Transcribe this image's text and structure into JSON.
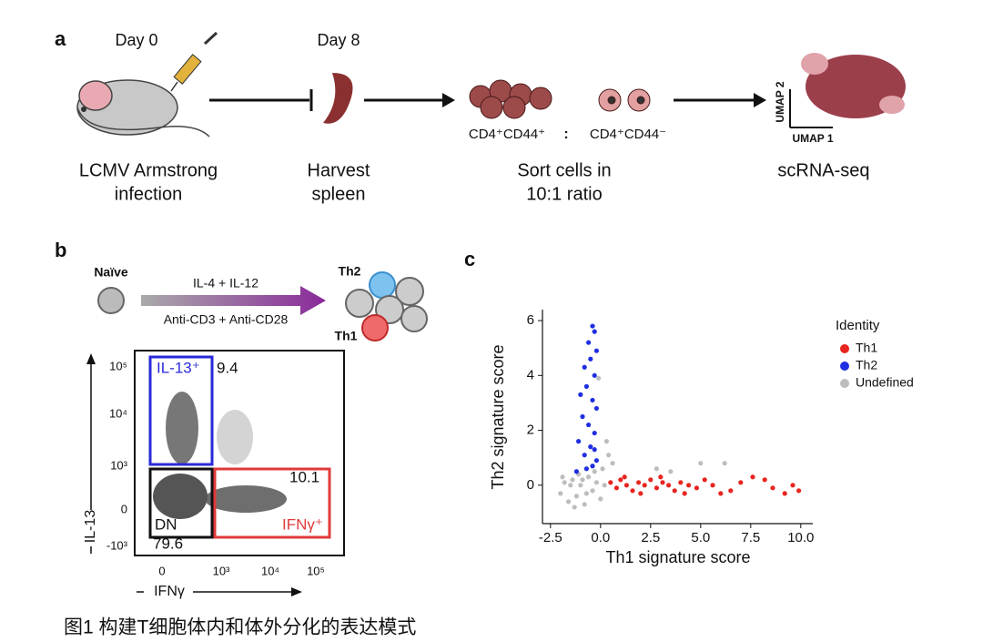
{
  "panel_a": {
    "label": "a",
    "day0": "Day 0",
    "day8": "Day 8",
    "step1": [
      "LCMV Armstrong",
      "infection"
    ],
    "step2": [
      "Harvest",
      "spleen"
    ],
    "step3": [
      "Sort cells in",
      "10:1 ratio"
    ],
    "step4": "scRNA-seq",
    "pop1": "CD4⁺CD44⁺",
    "ratio_sep": ":",
    "pop2": "CD4⁺CD44⁻",
    "umap_y": "UMAP 2",
    "umap_x": "UMAP 1"
  },
  "panel_b": {
    "label": "b",
    "naive": "Naïve",
    "cond_top": "IL-4 + IL-12",
    "cond_bottom": "Anti-CD3 + Anti-CD28",
    "th2": "Th2",
    "th1": "Th1",
    "y_label": "IL-13",
    "x_label": "IFNγ",
    "yticks": [
      "10⁵",
      "10⁴",
      "10³",
      "0",
      "-10³"
    ],
    "xticks": [
      "0",
      "10³",
      "10⁴",
      "10⁵"
    ],
    "gate_il13": "IL-13⁺",
    "gate_il13_pct": "9.4",
    "gate_ifng": "IFNγ⁺",
    "gate_ifng_pct": "10.1",
    "gate_dn": "DN",
    "gate_dn_pct": "79.6"
  },
  "panel_c": {
    "label": "c",
    "chart_data": {
      "type": "scatter",
      "x_label": "Th1 signature score",
      "y_label": "Th2 signature score",
      "legend_title": "Identity",
      "xlim": [
        -2.9,
        10.6
      ],
      "ylim": [
        -1.4,
        6.4
      ],
      "xticks": [
        -2.5,
        {
          "value": 0,
          "label": "0.0"
        },
        2.5,
        {
          "value": 5,
          "label": "5.0"
        },
        7.5,
        {
          "value": 10,
          "label": "10.0"
        }
      ],
      "yticks": [
        0,
        2,
        4,
        6
      ],
      "series": [
        {
          "name": "Th1",
          "color": "#e8251f",
          "x": [
            0.5,
            0.8,
            1.0,
            1.3,
            1.6,
            1.9,
            2.2,
            2.5,
            2.8,
            3.1,
            3.4,
            3.7,
            4.0,
            4.4,
            4.8,
            5.2,
            5.6,
            6.0,
            6.5,
            7.0,
            7.6,
            8.2,
            8.6,
            9.2,
            9.6,
            9.9,
            1.2,
            2.0,
            3.0,
            4.2
          ],
          "y": [
            0.1,
            -0.1,
            0.2,
            0.0,
            -0.2,
            0.1,
            0.0,
            0.2,
            -0.1,
            0.1,
            0.0,
            -0.2,
            0.1,
            0.0,
            -0.1,
            0.2,
            0.0,
            -0.3,
            -0.2,
            0.1,
            0.3,
            0.2,
            -0.1,
            -0.3,
            0.0,
            -0.2,
            0.3,
            -0.3,
            0.3,
            -0.3
          ]
        },
        {
          "name": "Th2",
          "color": "#1f2ee0",
          "x": [
            -0.4,
            -0.3,
            -0.6,
            -0.2,
            -0.5,
            -0.8,
            -0.3,
            -0.7,
            -1.0,
            -0.4,
            -0.2,
            -0.9,
            -0.6,
            -0.3,
            -1.1,
            -0.5,
            -0.8,
            -0.2,
            -0.4,
            -0.7,
            -1.2,
            -0.3
          ],
          "y": [
            5.8,
            5.6,
            5.2,
            4.9,
            4.6,
            4.3,
            4.0,
            3.6,
            3.3,
            3.1,
            2.8,
            2.5,
            2.2,
            1.9,
            1.6,
            1.4,
            1.1,
            0.9,
            0.7,
            0.6,
            0.5,
            1.3
          ]
        },
        {
          "name": "Undefined",
          "color": "#bdbdbd",
          "x": [
            -2.0,
            -1.8,
            -1.6,
            -1.4,
            -1.2,
            -1.0,
            -0.8,
            -0.6,
            -0.4,
            -0.2,
            0.0,
            0.2,
            -1.9,
            -1.5,
            -1.1,
            -0.7,
            -0.3,
            0.1,
            -1.3,
            -0.9,
            0.4,
            0.3,
            -0.1,
            0.6,
            5.0,
            6.2,
            3.5,
            2.8
          ],
          "y": [
            -0.3,
            0.1,
            -0.6,
            0.2,
            -0.4,
            0.0,
            -0.7,
            0.3,
            -0.2,
            0.1,
            -0.5,
            0.0,
            0.3,
            0.0,
            0.4,
            -0.3,
            0.5,
            0.6,
            -0.8,
            0.2,
            1.1,
            1.6,
            3.9,
            0.8,
            0.8,
            0.8,
            0.5,
            0.6
          ]
        }
      ]
    }
  },
  "caption": "图1 构建T细胞体内和体外分化的表达模式"
}
